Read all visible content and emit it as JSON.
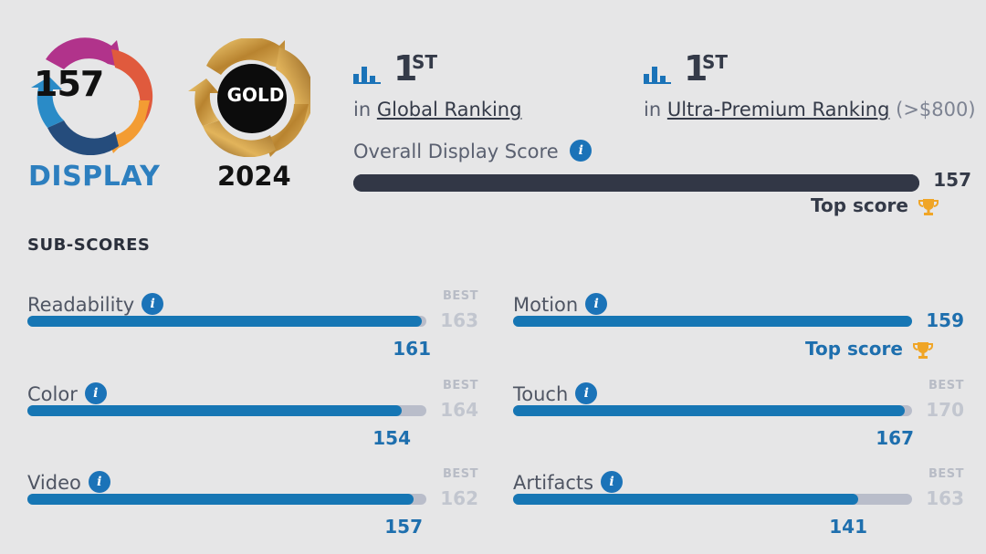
{
  "badge": {
    "score": "157",
    "label": "DISPLAY"
  },
  "award": {
    "tier": "GOLD",
    "year": "2024"
  },
  "rankings": [
    {
      "rank": "1",
      "suffix": "ST",
      "prefix": "in",
      "link": "Global Ranking",
      "extra": ""
    },
    {
      "rank": "1",
      "suffix": "ST",
      "prefix": "in",
      "link": "Ultra-Premium Ranking",
      "extra": "(>$800)"
    }
  ],
  "overall": {
    "label": "Overall Display Score",
    "value": "157",
    "fraction": 1.0,
    "top_score_label": "Top score"
  },
  "subscores_title": "SUB-SCORES",
  "best_label": "BEST",
  "subscores": [
    {
      "name": "Readability",
      "value": "161",
      "best": "163",
      "fraction": 0.988
    },
    {
      "name": "Motion",
      "value": "159",
      "best": "",
      "fraction": 1.0,
      "top_score_label": "Top score"
    },
    {
      "name": "Color",
      "value": "154",
      "best": "164",
      "fraction": 0.939
    },
    {
      "name": "Touch",
      "value": "167",
      "best": "170",
      "fraction": 0.982
    },
    {
      "name": "Video",
      "value": "157",
      "best": "162",
      "fraction": 0.969
    },
    {
      "name": "Artifacts",
      "value": "141",
      "best": "163",
      "fraction": 0.865
    }
  ],
  "colors": {
    "accent_blue": "#1676b4",
    "display_label": "#2d7fbf",
    "bar_dark": "#323746",
    "track": "#b9bdca",
    "trophy": "#f0a526"
  },
  "icons": [
    "bar-chart-icon",
    "info-icon",
    "trophy-icon"
  ]
}
